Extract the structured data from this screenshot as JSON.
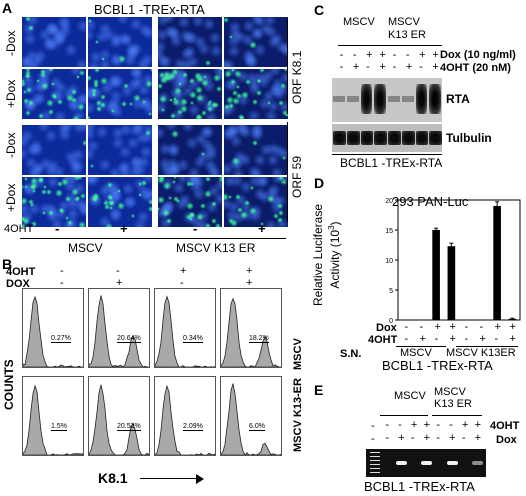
{
  "panel_letters": {
    "a": "A",
    "b": "B",
    "c": "C",
    "d": "D",
    "e": "E"
  },
  "panel_a": {
    "title": "BCBL1 -TREx-RTA",
    "row_labels": [
      "-Dox",
      "+Dox",
      "-Dox",
      "+Dox"
    ],
    "orf_labels": [
      "ORF K8.1",
      "ORF 59"
    ],
    "treatment_label": "4OHT",
    "signs": [
      "-",
      "+",
      "-",
      "+"
    ],
    "group_labels": [
      "MSCV",
      "MSCV K13 ER"
    ]
  },
  "panel_b": {
    "row_4oht": "4OHT",
    "row_dox": "DOX",
    "signs_4oht": [
      "-",
      "-",
      "+",
      "+"
    ],
    "signs_dox": [
      "-",
      "+",
      "-",
      "+"
    ],
    "percent_top": [
      "0.27%",
      "20.64%",
      "0.34%",
      "18.2%"
    ],
    "percent_bottom": [
      "1.5%",
      "20.52%",
      "2.09%",
      "6.0%"
    ],
    "row_labels": [
      "MSCV",
      "MSCV K13-ER"
    ],
    "ylabel": "COUNTS",
    "xlabel": "K8.1"
  },
  "panel_c": {
    "groups": [
      "MSCV",
      "MSCV K13 ER"
    ],
    "dox_label": "Dox (10 ng/ml)",
    "ohtlabel": "4OHT (20 nM)",
    "dox_signs": [
      "-",
      "-",
      "+",
      "+",
      "-",
      "-",
      "+",
      "+"
    ],
    "oht_signs": [
      "-",
      "+",
      "-",
      "+",
      "-",
      "+",
      "-",
      "+"
    ],
    "blot_labels": [
      "RTA",
      "Tulbulin"
    ],
    "caption": "BCBL1 -TREx-RTA"
  },
  "panel_e": {
    "groups": [
      "MSCV",
      "MSCV K13 ER"
    ],
    "row_4oht": "4OHT",
    "row_dox": "Dox",
    "signs_4oht": [
      "-",
      "-",
      "+",
      "+",
      "-",
      "-",
      "+",
      "+"
    ],
    "signs_dox": [
      "-",
      "+",
      "-",
      "+",
      "-",
      "+",
      "-",
      "+"
    ],
    "marker_sign": "-",
    "caption": "BCBL1 -TREx-RTA"
  },
  "chart_data": {
    "type": "bar",
    "title": "293 PAN-Luc",
    "ylabel": "Relative Luciferase Activity (10^3)",
    "ylabel_lines": [
      "Relative Luciferase",
      "Activity (10",
      "3",
      ")"
    ],
    "ylim": [
      0,
      20
    ],
    "yticks": [
      "0",
      "5",
      "10",
      "15",
      "20"
    ],
    "categories": [
      "S.N. -/-",
      "-/+",
      "+/-",
      "+/+",
      "K13ER -/-",
      "-/+",
      "+/-",
      "+/+"
    ],
    "values": [
      0,
      0,
      15,
      12.3,
      0,
      0,
      19,
      0.2
    ],
    "errors": [
      0,
      0,
      0.3,
      0.5,
      0,
      0,
      0.7,
      0.1
    ],
    "row_dox": "Dox",
    "row_4oht": "4OHT",
    "row_sn": "S.N.",
    "signs_dox": [
      "-",
      "-",
      "+",
      "+",
      "-",
      "-",
      "+",
      "+"
    ],
    "signs_4oht": [
      "-",
      "+",
      "-",
      "+",
      "-",
      "+",
      "-",
      "+"
    ],
    "groups": [
      "MSCV",
      "MSCV K13ER"
    ],
    "caption": "BCBL1 -TREx-RTA",
    "bar_color": "#000000"
  },
  "colors": {
    "nucleus_blue": "#1b4fd6",
    "stain_green": "#3cff9a",
    "gel_dark": "#111111",
    "band_white": "#f0f0f0"
  }
}
